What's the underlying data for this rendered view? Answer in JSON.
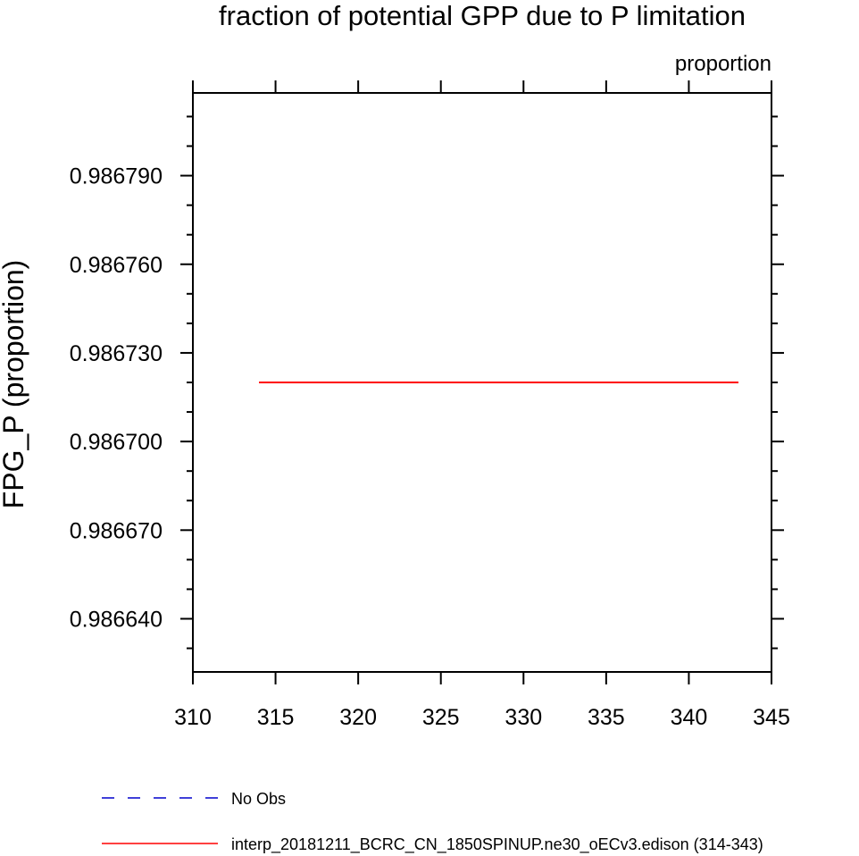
{
  "chart_data": {
    "type": "line",
    "title": "fraction of potential GPP due to P limitation",
    "units_label": "proportion",
    "xlabel": "",
    "ylabel": "FPG_P  (proportion)",
    "xlim": [
      310,
      345
    ],
    "ylim": [
      0.986622,
      0.986818
    ],
    "x_ticks": [
      310,
      315,
      320,
      325,
      330,
      335,
      340,
      345
    ],
    "y_ticks": [
      0.98664,
      0.98667,
      0.9867,
      0.98673,
      0.98676,
      0.98679
    ],
    "y_tick_labels": [
      "0.986640",
      "0.986670",
      "0.986700",
      "0.986730",
      "0.986760",
      "0.986790"
    ],
    "grid": false,
    "legend_position": "bottom-left",
    "series": [
      {
        "name": "interp_20181211_BCRC_CN_1850SPINUP.ne30_oECv3.edison (314-343)",
        "color": "#ff0000",
        "dash": "solid",
        "x": [
          314,
          343
        ],
        "y": [
          0.98672,
          0.98672
        ]
      }
    ],
    "legend": [
      {
        "label": "No Obs",
        "color": "#0000cc",
        "dash": "dashed"
      },
      {
        "label": "interp_20181211_BCRC_CN_1850SPINUP.ne30_oECv3.edison (314-343)",
        "color": "#ff0000",
        "dash": "solid"
      }
    ]
  }
}
